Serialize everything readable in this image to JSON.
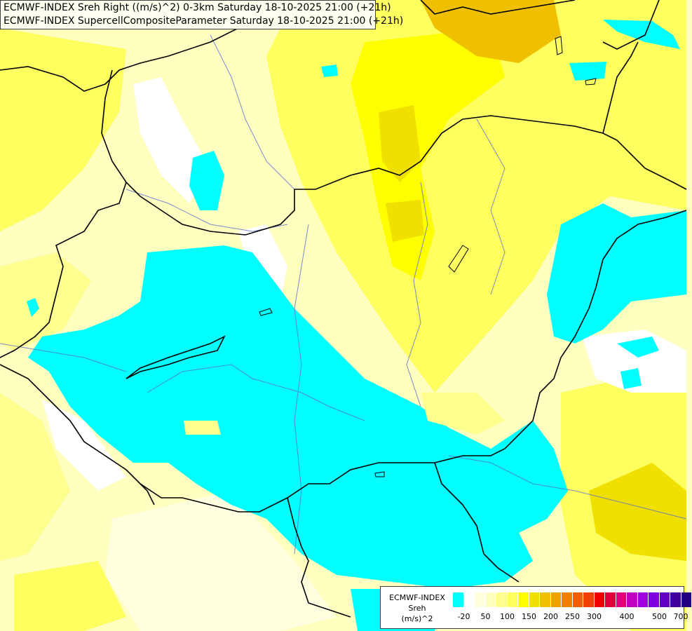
{
  "header": {
    "line1": "ECMWF-INDEX Sreh Right ((m/s)^2) 0-3km Saturday 18-10-2025 21:00 (+21h)",
    "line2": "ECMWF-INDEX SupercellCompositeParameter Saturday 18-10-2025 21:00 (+21h)"
  },
  "legend": {
    "source": "ECMWF-INDEX",
    "variable": "Sreh",
    "unit": "(m/s)^2",
    "colors": [
      "#00ffff",
      "#ffffff",
      "#ffffe0",
      "#ffffc0",
      "#ffff90",
      "#ffff60",
      "#ffff00",
      "#f0e000",
      "#f0c000",
      "#f0a000",
      "#f08000",
      "#f06000",
      "#f04000",
      "#f00000",
      "#e00040",
      "#e00080",
      "#c000c0",
      "#a000e0",
      "#8000e0",
      "#6000c0",
      "#4000a0",
      "#200080"
    ],
    "tick_labels": [
      "-20",
      "50",
      "100",
      "150",
      "200",
      "250",
      "300",
      "400",
      "500",
      "700"
    ]
  },
  "map": {
    "background_color": "#ffffc0",
    "low_value_color": "#00ffff",
    "high_value_color": "#f0c000"
  }
}
